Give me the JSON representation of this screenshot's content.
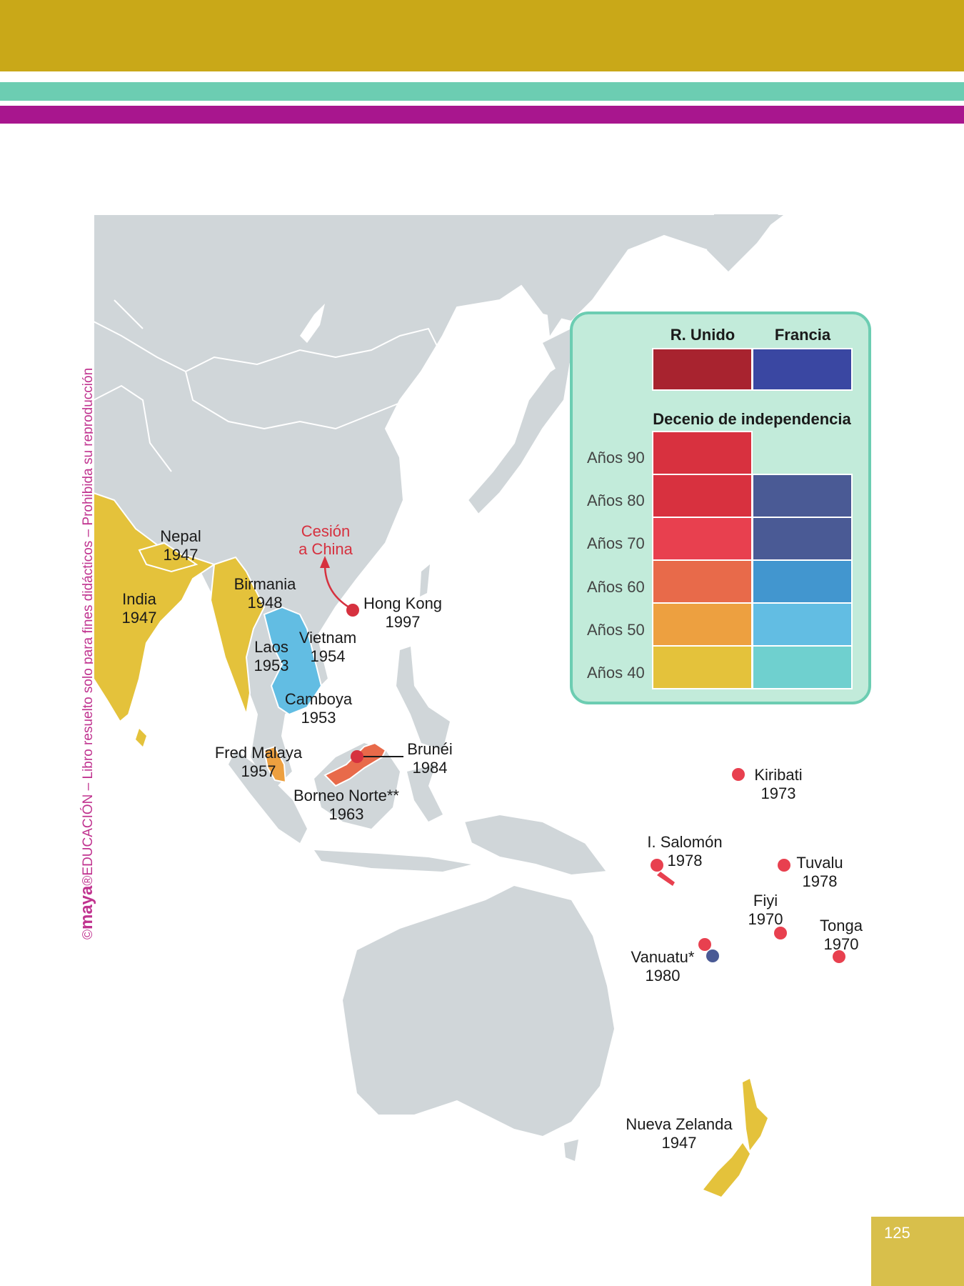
{
  "colors": {
    "land": "#d0d6d9",
    "border": "#ffffff",
    "decade_40s_uk": "#e4c23b",
    "decade_50s_uk": "#eda040",
    "decade_60s_uk": "#e86a4a",
    "decade_70s_uk": "#e8404f",
    "decade_80s_uk": "#d8313f",
    "decade_90s_uk": "#d8313f",
    "decade_40s_fr": "#6fd0cf",
    "decade_50s_fr": "#62bde3",
    "decade_60s_fr": "#4296cf",
    "decade_70s_fr": "#4a5a95",
    "decade_80s_fr": "#4a5a95",
    "uk": "#a8232f",
    "france": "#3a47a2",
    "legend_bg": "#c2ebda",
    "legend_border": "#6ccdb2"
  },
  "sidebar": {
    "copyright": "©",
    "brand": "maya",
    "text": "®EDUCACIÓN – Libro resuelto solo para fines didácticos – Prohibida su reproducción"
  },
  "legend": {
    "col_uk": "R. Unido",
    "col_fr": "Francia",
    "subtitle": "Decenio de independencia",
    "rows": [
      "Años 90",
      "Años 80",
      "Años 70",
      "Años 60",
      "Años 50",
      "Años 40"
    ]
  },
  "labels": {
    "nepal": {
      "name": "Nepal",
      "year": "1947"
    },
    "india": {
      "name": "India",
      "year": "1947"
    },
    "birmania": {
      "name": "Birmania",
      "year": "1948"
    },
    "laos": {
      "name": "Laos",
      "year": "1953"
    },
    "vietnam": {
      "name": "Vietnam",
      "year": "1954"
    },
    "camboya": {
      "name": "Camboya",
      "year": "1953"
    },
    "hongkong": {
      "name": "Hong Kong",
      "year": "1997"
    },
    "cesion": {
      "line1": "Cesión",
      "line2": "a China"
    },
    "malaya": {
      "name": "Fred Malaya",
      "year": "1957"
    },
    "brunei": {
      "name": "Brunéi",
      "year": "1984"
    },
    "borneo": {
      "name": "Borneo Norte**",
      "year": "1963"
    },
    "kiribati": {
      "name": "Kiribati",
      "year": "1973"
    },
    "salomon": {
      "name": "I. Salomón",
      "year": "1978"
    },
    "tuvalu": {
      "name": "Tuvalu",
      "year": "1978"
    },
    "fiyi": {
      "name": "Fiyi",
      "year": "1970"
    },
    "tonga": {
      "name": "Tonga",
      "year": "1970"
    },
    "vanuatu": {
      "name": "Vanuatu*",
      "year": "1980"
    },
    "nz": {
      "name": "Nueva Zelanda",
      "year": "1947"
    }
  },
  "page_number": "125"
}
